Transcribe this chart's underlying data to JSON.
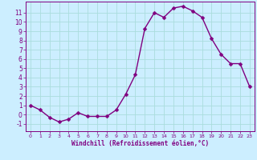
{
  "x": [
    0,
    1,
    2,
    3,
    4,
    5,
    6,
    7,
    8,
    9,
    10,
    11,
    12,
    13,
    14,
    15,
    16,
    17,
    18,
    19,
    20,
    21,
    22,
    23
  ],
  "y": [
    1.0,
    0.5,
    -0.3,
    -0.8,
    -0.5,
    0.2,
    -0.2,
    -0.2,
    -0.2,
    0.5,
    2.2,
    4.3,
    9.3,
    11.0,
    10.5,
    11.5,
    11.7,
    11.2,
    10.5,
    8.2,
    6.5,
    5.5,
    5.5,
    3.0
  ],
  "line_color": "#800080",
  "marker_color": "#800080",
  "bg_color": "#cceeff",
  "grid_color": "#aadddd",
  "xlabel": "Windchill (Refroidissement éolien,°C)",
  "xlabel_color": "#800080",
  "xlim": [
    -0.5,
    23.5
  ],
  "ylim": [
    -1.8,
    12.2
  ],
  "yticks": [
    -1,
    0,
    1,
    2,
    3,
    4,
    5,
    6,
    7,
    8,
    9,
    10,
    11
  ],
  "xticks": [
    0,
    1,
    2,
    3,
    4,
    5,
    6,
    7,
    8,
    9,
    10,
    11,
    12,
    13,
    14,
    15,
    16,
    17,
    18,
    19,
    20,
    21,
    22,
    23
  ],
  "tick_color": "#800080",
  "spine_color": "#800080",
  "marker_size": 2.5,
  "line_width": 1.0
}
